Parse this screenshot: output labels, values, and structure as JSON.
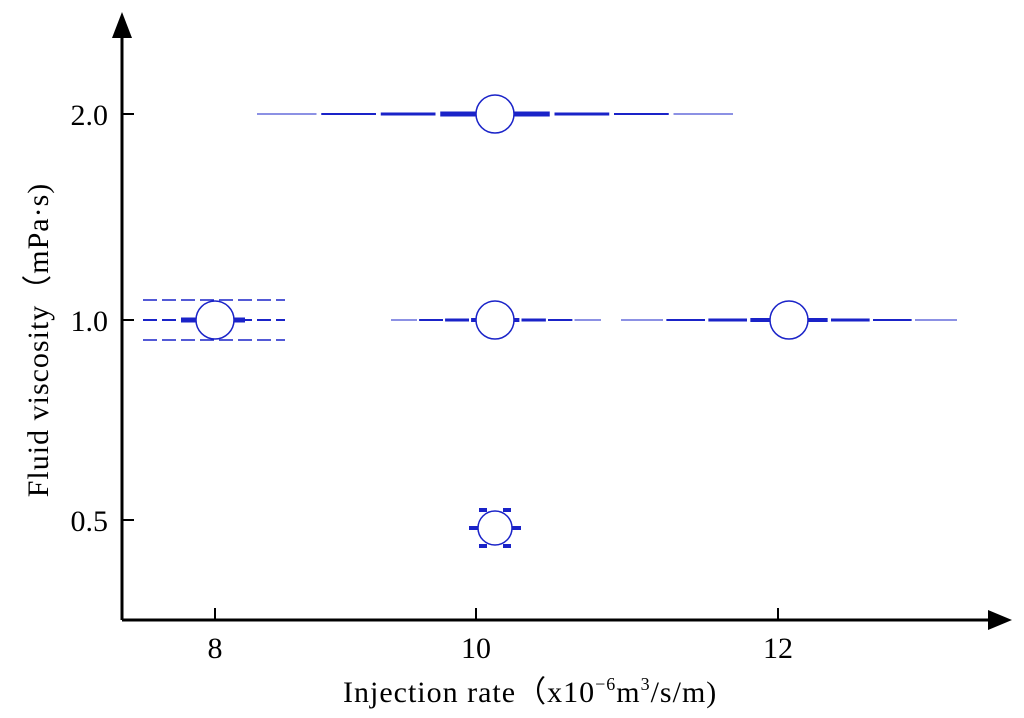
{
  "chart_data": {
    "type": "scatter",
    "title": "",
    "xlabel_main": "Injection rate（x10",
    "xlabel_exp1": "−6",
    "xlabel_mid": "m",
    "xlabel_exp2": "3",
    "xlabel_tail": "/s/m)",
    "ylabel": "Fluid viscosity（mPa·s)",
    "x_ticks": [
      "8",
      "10",
      "12"
    ],
    "y_ticks": [
      "0.5",
      "1.0",
      "2.0"
    ],
    "y_scale": "categorical",
    "points": [
      {
        "x": 10,
        "y": "2.0",
        "style": "long-fracture-thin-tips"
      },
      {
        "x": 8,
        "y": "1.0",
        "style": "short-fracture-parallel-dashed"
      },
      {
        "x": 10,
        "y": "1.0",
        "style": "medium-fracture"
      },
      {
        "x": 12.1,
        "y": "1.0",
        "style": "long-fracture-right"
      },
      {
        "x": 10,
        "y": "0.5",
        "style": "compact-branched"
      }
    ],
    "colors": {
      "marker": "#1a23c8",
      "axes": "#000000"
    }
  }
}
